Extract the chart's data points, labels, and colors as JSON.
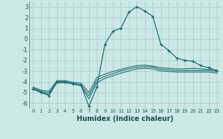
{
  "xlabel": "Humidex (Indice chaleur)",
  "bg_color": "#cde8e8",
  "grid_color": "#a8cccc",
  "line_color": "#1a6b6b",
  "xlim": [
    -0.5,
    23.5
  ],
  "ylim": [
    -6.5,
    3.5
  ],
  "xticks": [
    0,
    1,
    2,
    3,
    4,
    5,
    6,
    7,
    8,
    9,
    10,
    11,
    12,
    13,
    14,
    15,
    16,
    17,
    18,
    19,
    20,
    21,
    22,
    23
  ],
  "yticks": [
    -6,
    -5,
    -4,
    -3,
    -2,
    -1,
    0,
    1,
    2,
    3
  ],
  "series": [
    {
      "x": [
        0,
        1,
        2,
        3,
        4,
        5,
        6,
        7,
        8,
        9,
        10,
        11,
        12,
        13,
        14,
        15,
        16,
        17,
        18,
        19,
        20,
        21,
        22,
        23
      ],
      "y": [
        -4.7,
        -5.0,
        -5.3,
        -4.0,
        -4.0,
        -4.2,
        -4.3,
        -6.3,
        -4.5,
        -0.5,
        0.7,
        1.0,
        2.5,
        3.0,
        2.6,
        2.1,
        -0.5,
        -1.1,
        -1.8,
        -2.0,
        -2.1,
        -2.5,
        -2.7,
        -3.0
      ],
      "marker": "+"
    },
    {
      "x": [
        0,
        1,
        2,
        3,
        4,
        5,
        6,
        7,
        8,
        9,
        10,
        11,
        12,
        13,
        14,
        15,
        16,
        17,
        18,
        19,
        20,
        21,
        22,
        23
      ],
      "y": [
        -4.5,
        -4.8,
        -4.9,
        -3.9,
        -3.9,
        -4.05,
        -4.15,
        -5.0,
        -3.6,
        -3.3,
        -3.05,
        -2.85,
        -2.65,
        -2.5,
        -2.45,
        -2.55,
        -2.7,
        -2.75,
        -2.8,
        -2.8,
        -2.75,
        -2.8,
        -2.85,
        -2.9
      ],
      "marker": null
    },
    {
      "x": [
        0,
        1,
        2,
        3,
        4,
        5,
        6,
        7,
        8,
        9,
        10,
        11,
        12,
        13,
        14,
        15,
        16,
        17,
        18,
        19,
        20,
        21,
        22,
        23
      ],
      "y": [
        -4.6,
        -4.9,
        -5.05,
        -4.05,
        -4.05,
        -4.15,
        -4.3,
        -5.3,
        -3.85,
        -3.5,
        -3.25,
        -3.0,
        -2.8,
        -2.65,
        -2.6,
        -2.65,
        -2.85,
        -2.9,
        -2.95,
        -2.95,
        -2.95,
        -2.95,
        -2.95,
        -3.05
      ],
      "marker": null
    },
    {
      "x": [
        0,
        1,
        2,
        3,
        4,
        5,
        6,
        7,
        8,
        9,
        10,
        11,
        12,
        13,
        14,
        15,
        16,
        17,
        18,
        19,
        20,
        21,
        22,
        23
      ],
      "y": [
        -4.7,
        -5.0,
        -5.2,
        -4.1,
        -4.1,
        -4.2,
        -4.4,
        -5.6,
        -4.1,
        -3.7,
        -3.45,
        -3.2,
        -3.0,
        -2.8,
        -2.75,
        -2.8,
        -3.0,
        -3.05,
        -3.1,
        -3.1,
        -3.1,
        -3.1,
        -3.1,
        -3.2
      ],
      "marker": null
    }
  ]
}
